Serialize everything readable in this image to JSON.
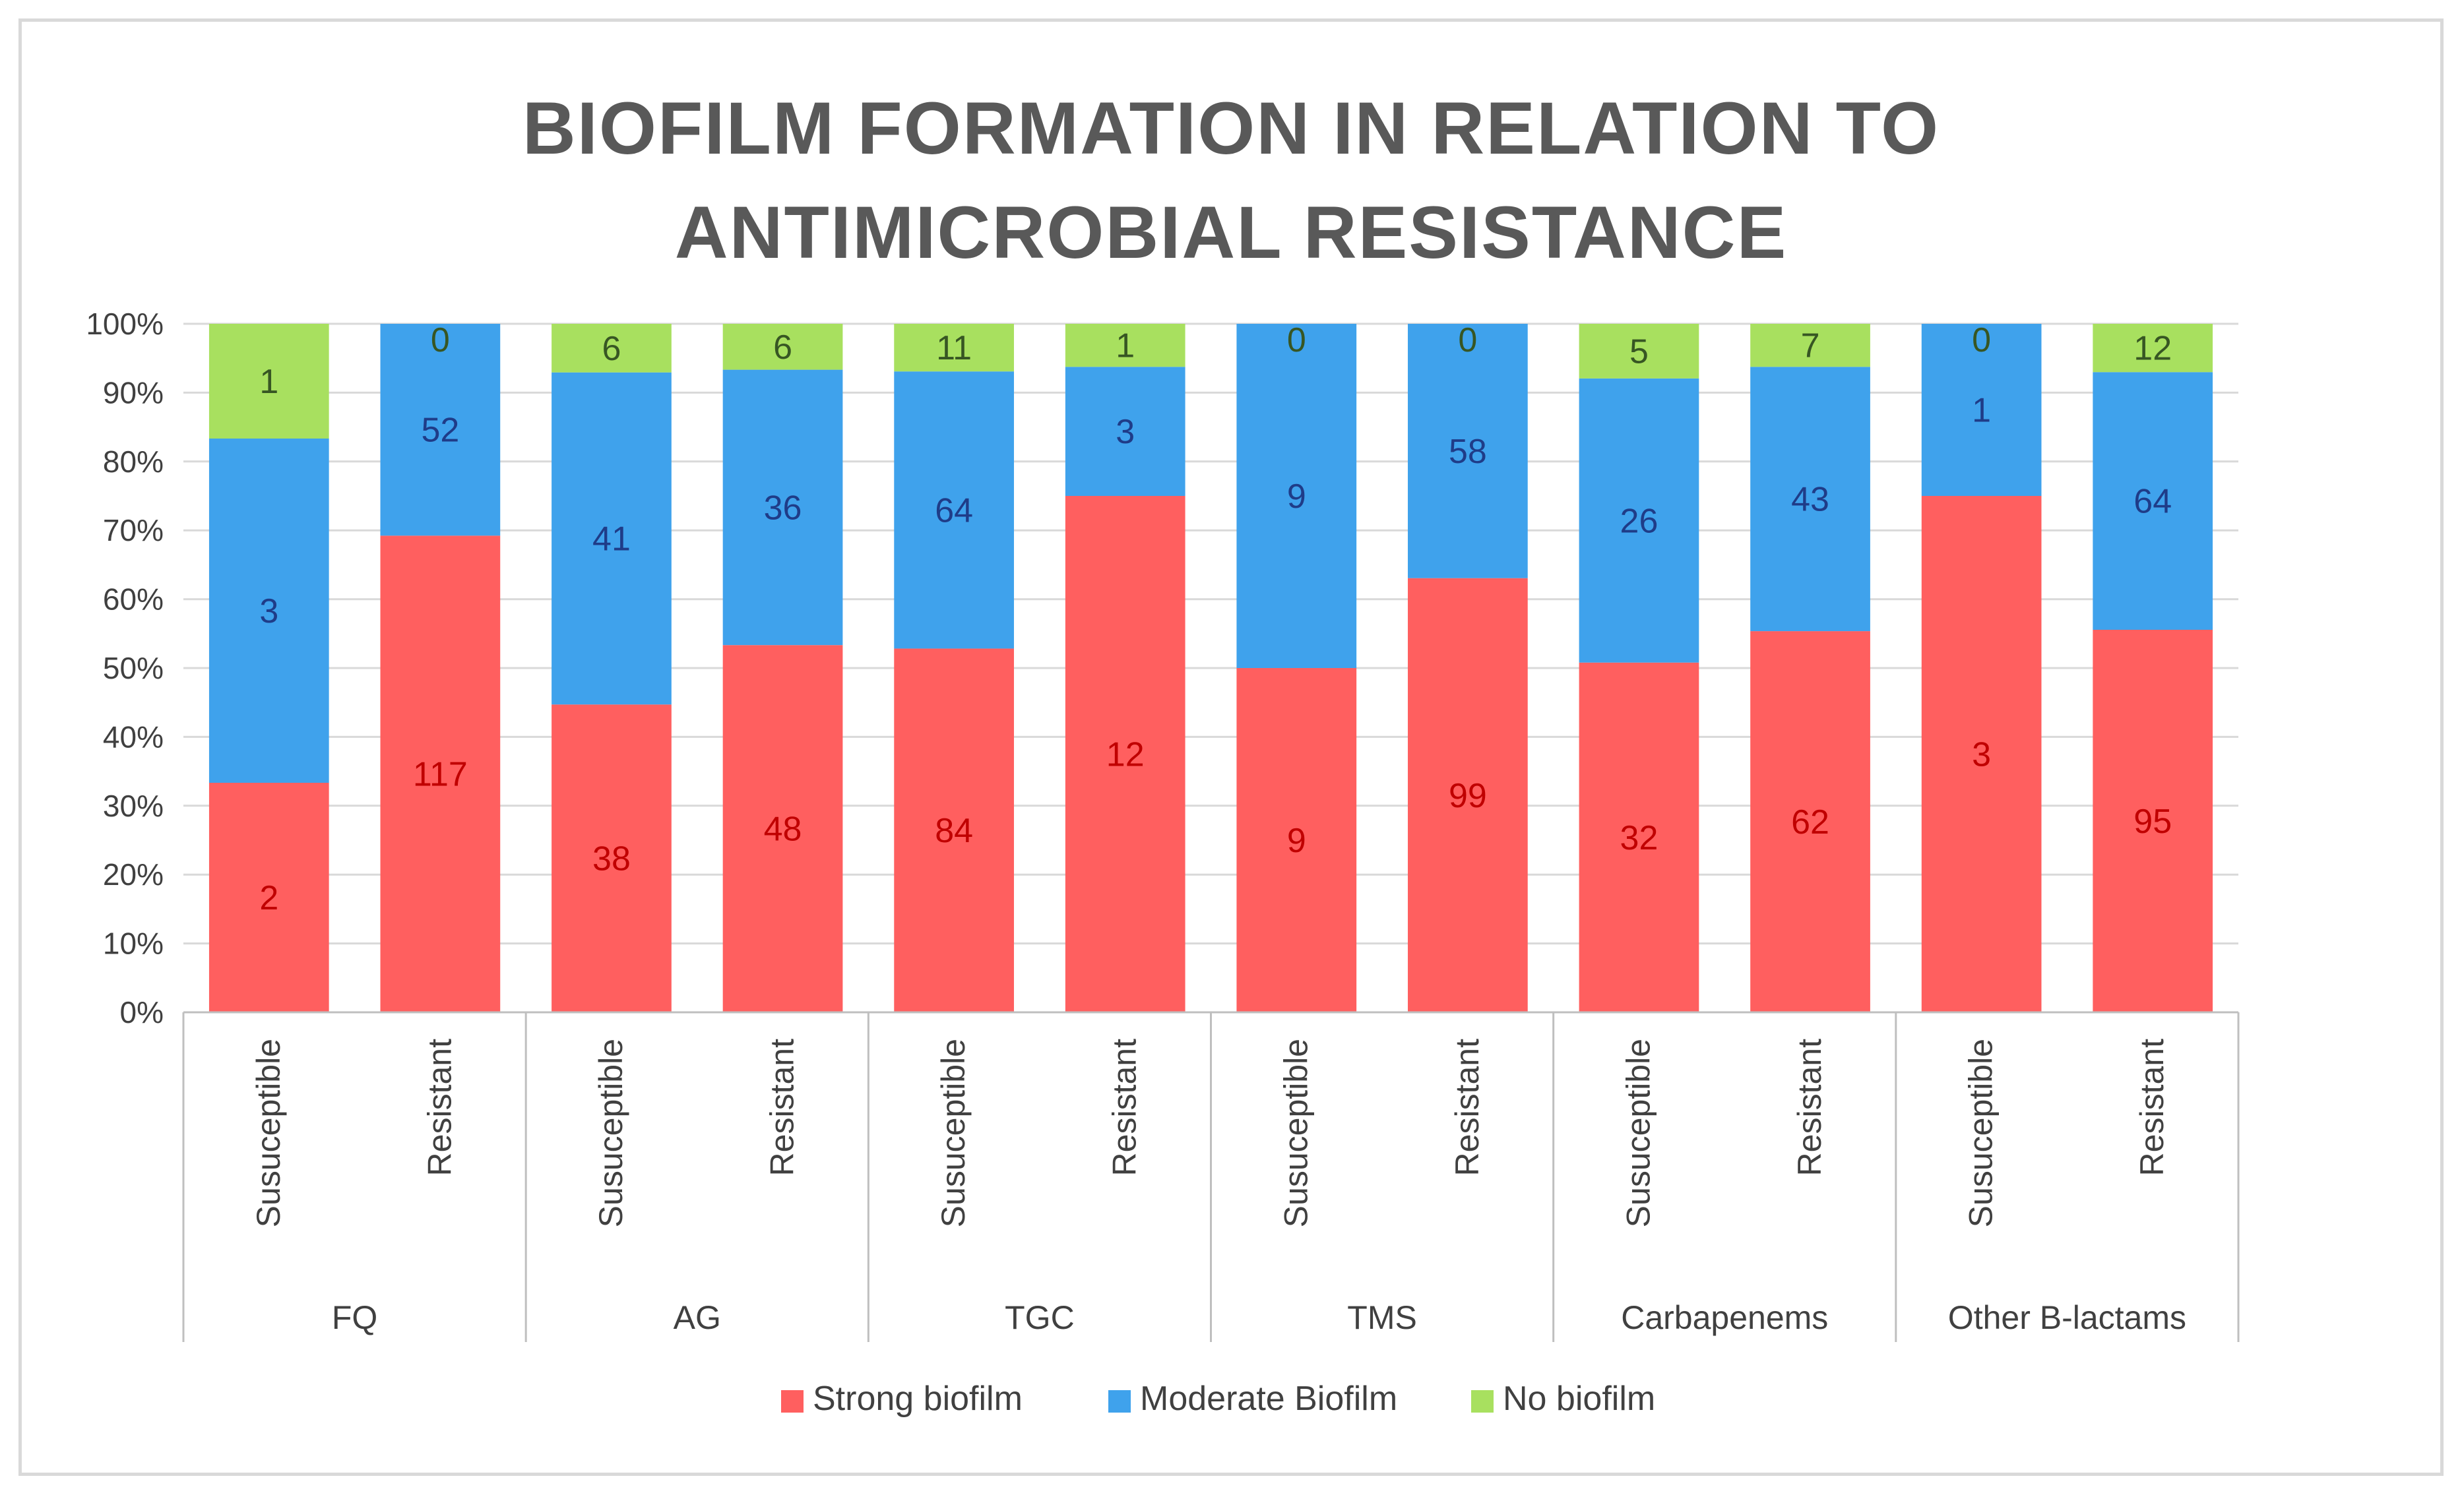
{
  "chart_data": {
    "type": "bar",
    "stacked": "percent",
    "title_lines": [
      "BIOFILM FORMATION IN RELATION TO",
      "ANTIMICROBIAL RESISTANCE"
    ],
    "y_ticks": [
      "0%",
      "10%",
      "20%",
      "30%",
      "40%",
      "50%",
      "60%",
      "70%",
      "80%",
      "90%",
      "100%"
    ],
    "ylim": [
      0,
      100
    ],
    "grid": true,
    "legend_position": "bottom",
    "groups": [
      "FQ",
      "AG",
      "TGC",
      "TMS",
      "Carbapenems",
      "Other B-lactams"
    ],
    "categories": [
      "Susuceptible",
      "Resistant",
      "Susuceptible",
      "Resistant",
      "Susuceptible",
      "Resistant",
      "Susuceptible",
      "Resistant",
      "Susuceptible",
      "Resistant",
      "Susuceptible",
      "Resistant"
    ],
    "series": [
      {
        "name": "Strong biofilm",
        "color": "#ff5f5f",
        "label_color": "#c00000",
        "values": [
          2,
          117,
          38,
          48,
          84,
          12,
          9,
          99,
          32,
          62,
          3,
          95
        ]
      },
      {
        "name": "Moderate Biofilm",
        "color": "#3fa2ec",
        "label_color": "#1f3c88",
        "values": [
          3,
          52,
          41,
          36,
          64,
          3,
          9,
          58,
          26,
          43,
          1,
          64
        ]
      },
      {
        "name": "No biofilm",
        "color": "#a8e05f",
        "label_color": "#375623",
        "values": [
          1,
          0,
          6,
          6,
          11,
          1,
          0,
          0,
          5,
          7,
          0,
          12
        ]
      }
    ]
  }
}
